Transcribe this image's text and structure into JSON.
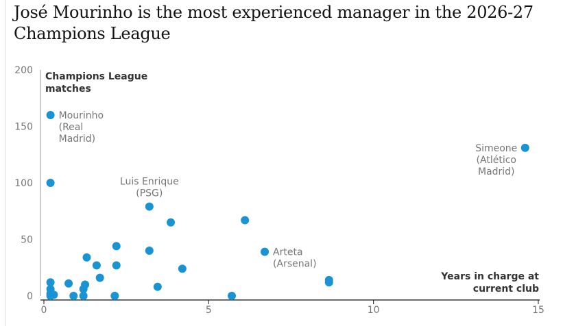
{
  "title": "José Mourinho is the most experienced manager in the 2026-27 Champions League",
  "chart_data": {
    "type": "scatter",
    "xlabel": [
      "Years in charge at",
      "current club"
    ],
    "ylabel": [
      "Champions League",
      "matches"
    ],
    "xlim": [
      0,
      15
    ],
    "ylim": [
      0,
      200
    ],
    "xticks": [
      0,
      5,
      10,
      15
    ],
    "yticks": [
      0,
      50,
      100,
      150,
      200
    ],
    "grid": false,
    "color": "#1a93d2",
    "points": [
      {
        "x": 0.2,
        "y": 160,
        "label": [
          "Mourinho",
          "(Real",
          "Madrid)"
        ]
      },
      {
        "x": 0.2,
        "y": 100
      },
      {
        "x": 14.6,
        "y": 131,
        "label": [
          "Simeone",
          "(Atlético",
          "Madrid)"
        ]
      },
      {
        "x": 3.2,
        "y": 79,
        "label": [
          "Luis Enrique",
          "(PSG)"
        ]
      },
      {
        "x": 6.7,
        "y": 39,
        "label": [
          "Arteta",
          "(Arsenal)"
        ]
      },
      {
        "x": 3.85,
        "y": 65
      },
      {
        "x": 6.1,
        "y": 67
      },
      {
        "x": 2.2,
        "y": 44
      },
      {
        "x": 3.2,
        "y": 40
      },
      {
        "x": 1.3,
        "y": 34
      },
      {
        "x": 1.6,
        "y": 27
      },
      {
        "x": 2.2,
        "y": 27
      },
      {
        "x": 4.2,
        "y": 24
      },
      {
        "x": 1.7,
        "y": 16
      },
      {
        "x": 8.65,
        "y": 14
      },
      {
        "x": 8.65,
        "y": 12
      },
      {
        "x": 0.2,
        "y": 12
      },
      {
        "x": 0.75,
        "y": 11
      },
      {
        "x": 1.25,
        "y": 10
      },
      {
        "x": 3.45,
        "y": 8
      },
      {
        "x": 1.2,
        "y": 6
      },
      {
        "x": 0.2,
        "y": 6
      },
      {
        "x": 0.2,
        "y": 2
      },
      {
        "x": 0.3,
        "y": 1
      },
      {
        "x": 0.2,
        "y": 0
      },
      {
        "x": 0.9,
        "y": 0
      },
      {
        "x": 1.2,
        "y": 0
      },
      {
        "x": 2.15,
        "y": 0
      },
      {
        "x": 5.7,
        "y": 0
      }
    ]
  }
}
